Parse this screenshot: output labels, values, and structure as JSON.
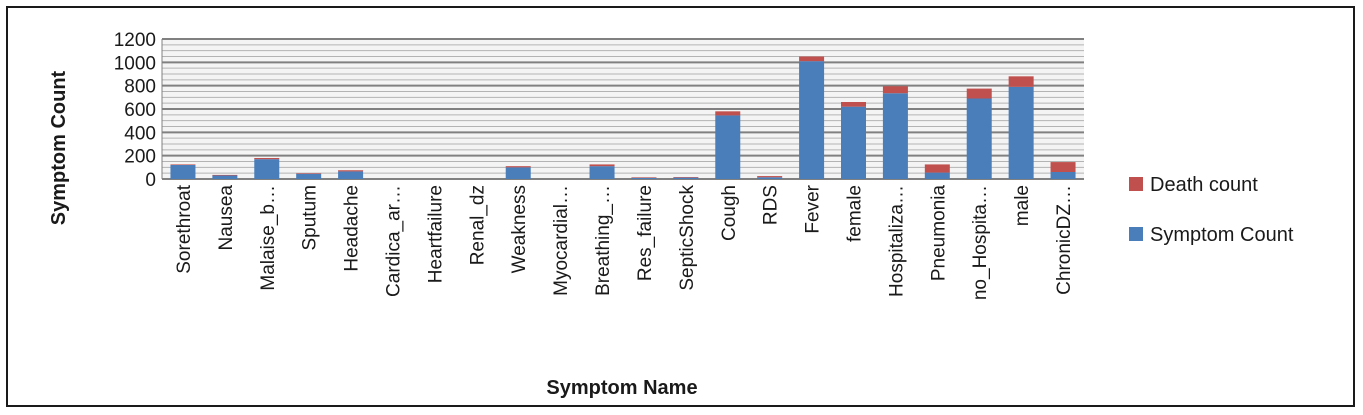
{
  "chart_data": {
    "type": "bar",
    "stacked": true,
    "xlabel": "Symptom Name",
    "ylabel": "Symptom Count",
    "ylim": [
      0,
      1200
    ],
    "yticks": [
      0,
      200,
      400,
      600,
      800,
      1000,
      1200
    ],
    "grid": true,
    "legend_position": "right",
    "categories": [
      "Sorethroat",
      "Nausea",
      "Malaise_b…",
      "Sputum",
      "Headache",
      "Cardica_ar…",
      "Heartfailure",
      "Renal_dz",
      "Weakness",
      "Myocardial…",
      "Breathing_…",
      "Res_failure",
      "SepticShock",
      "Cough",
      "RDS",
      "Fever",
      "female",
      "Hospitaliza…",
      "Pneumonia",
      "no_Hospita…",
      "male",
      "ChronicDZ…"
    ],
    "series": [
      {
        "name": "Symptom Count",
        "color": "#4a7ebb",
        "values": [
          120,
          30,
          170,
          45,
          65,
          0,
          0,
          0,
          100,
          0,
          110,
          10,
          12,
          545,
          15,
          1010,
          620,
          735,
          55,
          690,
          790,
          60
        ]
      },
      {
        "name": "Death  count",
        "color": "#c0504d",
        "values": [
          5,
          5,
          10,
          5,
          10,
          0,
          0,
          0,
          10,
          0,
          15,
          5,
          5,
          35,
          10,
          40,
          40,
          60,
          70,
          85,
          90,
          85
        ]
      }
    ]
  }
}
